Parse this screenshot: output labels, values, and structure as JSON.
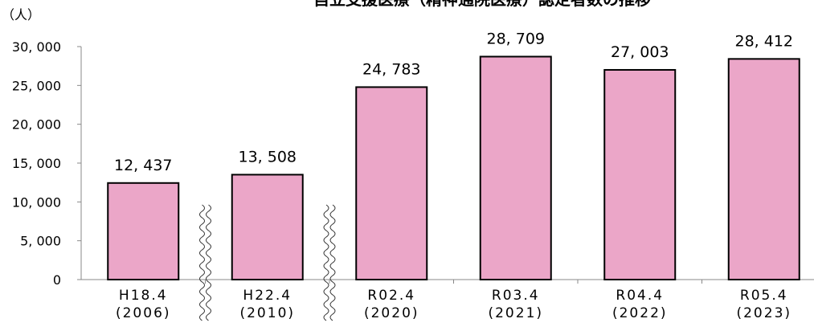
{
  "chart_data": {
    "type": "bar",
    "title": "自立支援医療（精神通院医療）認定者数の推移",
    "y_unit": "（人）",
    "categories": [
      [
        "H18.4",
        "(2006)"
      ],
      [
        "H22.4",
        "(2010)"
      ],
      [
        "R02.4",
        "(2020)"
      ],
      [
        "R03.4",
        "(2021)"
      ],
      [
        "R04.4",
        "(2022)"
      ],
      [
        "R05.4",
        "(2023)"
      ]
    ],
    "values": [
      12437,
      13508,
      24783,
      28709,
      27003,
      28412
    ],
    "value_labels": [
      "12, 437",
      "13, 508",
      "24, 783",
      "28, 709",
      "27, 003",
      "28, 412"
    ],
    "color": "#eba6c8",
    "ylim": [
      0,
      30000
    ],
    "yticks": [
      0,
      {
        "value": 5000,
        "label": "5, 000"
      },
      {
        "value": 10000,
        "label": "10, 000"
      },
      {
        "value": 15000,
        "label": "15, 000"
      },
      {
        "value": 20000,
        "label": "20, 000"
      },
      {
        "value": 25000,
        "label": "25, 000"
      },
      {
        "value": 30000,
        "label": "30, 000"
      }
    ],
    "grid": false
  }
}
